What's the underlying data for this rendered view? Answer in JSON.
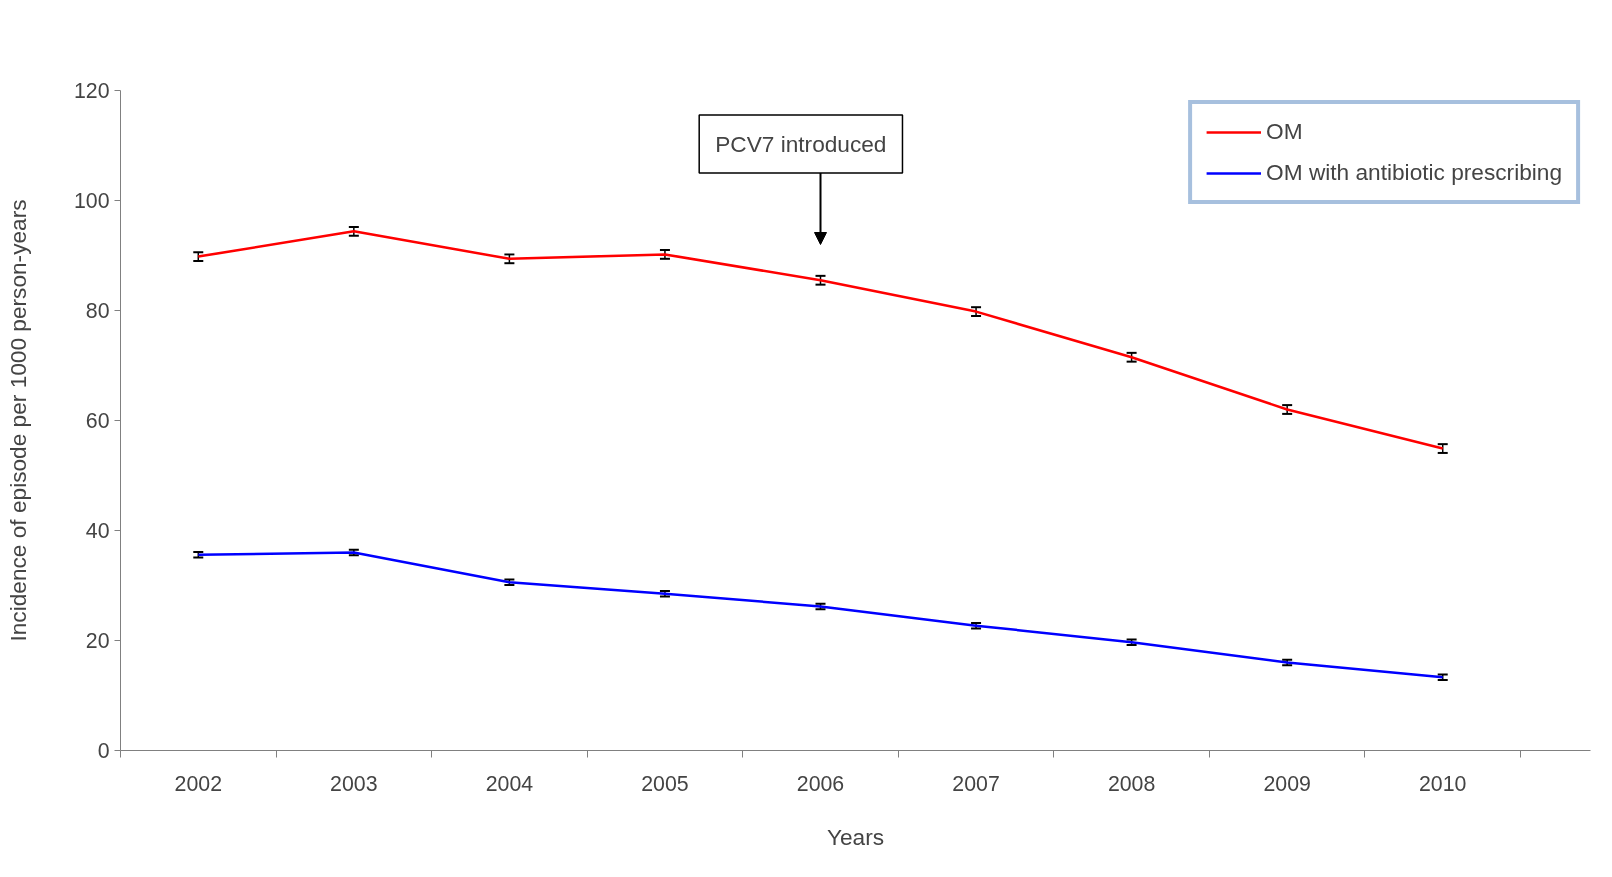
{
  "chart_data": {
    "type": "line",
    "xlabel": "Years",
    "ylabel": "Incidence of episode per 1000 person-years",
    "categories": [
      "2002",
      "2003",
      "2004",
      "2005",
      "2006",
      "2007",
      "2008",
      "2009",
      "2010"
    ],
    "series": [
      {
        "name": "OM",
        "color": "#ff0000",
        "values": [
          89.8,
          94.4,
          89.4,
          90.2,
          85.5,
          79.8,
          71.5,
          62.0,
          54.9
        ],
        "errors": [
          0.8,
          0.8,
          0.8,
          0.8,
          0.8,
          0.8,
          0.8,
          0.8,
          0.8
        ]
      },
      {
        "name": "OM with antibiotic prescribing",
        "color": "#0000ff",
        "values": [
          35.6,
          36.0,
          30.6,
          28.5,
          26.2,
          22.7,
          19.7,
          16.0,
          13.3
        ],
        "errors": [
          0.5,
          0.5,
          0.5,
          0.5,
          0.5,
          0.5,
          0.5,
          0.5,
          0.5
        ]
      }
    ],
    "ylim": [
      0,
      120
    ],
    "yticks": [
      0,
      20,
      40,
      60,
      80,
      100,
      120
    ],
    "annotations": [
      "PCV7 introduced"
    ],
    "legend": "top right",
    "grid": false,
    "marker": "none",
    "line_style": "solid"
  }
}
